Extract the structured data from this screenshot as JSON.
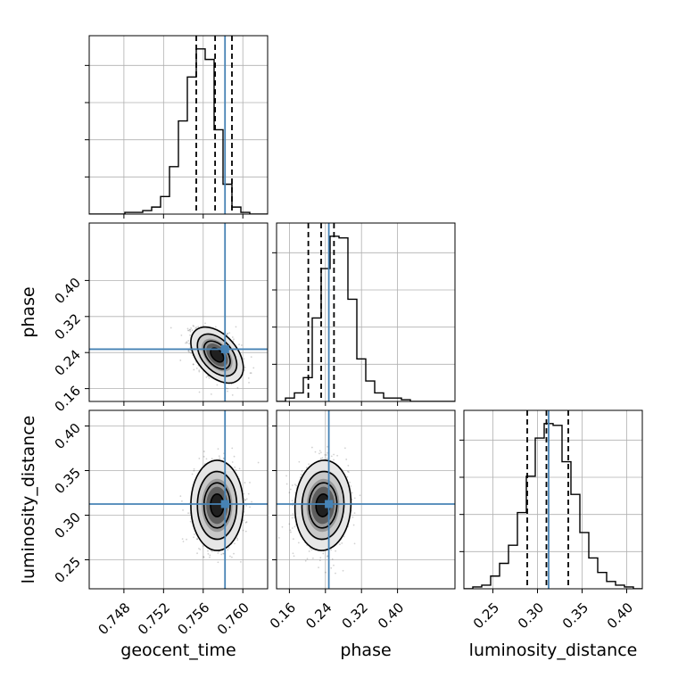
{
  "chart_data": {
    "type": "corner",
    "parameters": [
      "geocent_time",
      "phase",
      "luminosity_distance"
    ],
    "axis_labels": {
      "geocent_time": "geocent_time",
      "phase": "phase",
      "luminosity_distance": "luminosity_distance"
    },
    "ranges": {
      "geocent_time": [
        0.7445,
        0.7625
      ],
      "phase": [
        0.1315,
        0.5275
      ],
      "luminosity_distance": [
        0.2175,
        0.4175
      ]
    },
    "ticks": {
      "geocent_time": [
        {
          "value": 0.748,
          "label": "0.748"
        },
        {
          "value": 0.752,
          "label": "0.752"
        },
        {
          "value": 0.756,
          "label": "0.756"
        },
        {
          "value": 0.76,
          "label": "0.760"
        }
      ],
      "phase": [
        {
          "value": 0.16,
          "label": "0.16"
        },
        {
          "value": 0.24,
          "label": "0.24"
        },
        {
          "value": 0.32,
          "label": "0.32"
        },
        {
          "value": 0.4,
          "label": "0.40"
        }
      ],
      "luminosity_distance": [
        {
          "value": 0.25,
          "label": "0.25"
        },
        {
          "value": 0.3,
          "label": "0.30"
        },
        {
          "value": 0.35,
          "label": "0.35"
        },
        {
          "value": 0.4,
          "label": "0.40"
        }
      ]
    },
    "truths": {
      "geocent_time": 0.7582,
      "phase": 0.2475,
      "luminosity_distance": 0.3125
    },
    "quantiles": {
      "geocent_time": [
        0.7553,
        0.7572,
        0.7589
      ],
      "phase": [
        0.202,
        0.2305,
        0.259
      ],
      "luminosity_distance": [
        0.2885,
        0.31,
        0.3345
      ]
    },
    "histograms": {
      "geocent_time": {
        "bin_width": 0.0009,
        "bin_edges_start": 0.7445,
        "counts": [
          0,
          0,
          0,
          0,
          1,
          1,
          2,
          4,
          10,
          27,
          53,
          78,
          94,
          88,
          48,
          17,
          4,
          1,
          0,
          0
        ]
      },
      "phase": {
        "bin_width": 0.0198,
        "bin_edges_start": 0.1315,
        "counts": [
          0,
          2,
          5,
          14,
          49,
          78,
          97,
          96,
          60,
          25,
          12,
          5,
          2,
          2,
          1,
          0,
          0,
          0,
          0,
          0
        ]
      },
      "luminosity_distance": {
        "bin_width": 0.01,
        "bin_edges_start": 0.2175,
        "counts": [
          0,
          1,
          2,
          7,
          14,
          24,
          42,
          62,
          83,
          91,
          90,
          70,
          52,
          31,
          17,
          9,
          4,
          2,
          1,
          0
        ]
      }
    },
    "posterior_2d": {
      "geocent_time__phase": {
        "mean": [
          0.7574,
          0.2345
        ],
        "sigma": [
          0.00115,
          0.027
        ],
        "correlation": -0.45
      },
      "geocent_time__luminosity_distance": {
        "mean": [
          0.7574,
          0.311
        ],
        "sigma": [
          0.00115,
          0.022
        ],
        "correlation": 0.0
      },
      "phase__luminosity_distance": {
        "mean": [
          0.2345,
          0.311
        ],
        "sigma": [
          0.027,
          0.022
        ],
        "correlation": 0.05
      }
    },
    "contour_levels_sigma": [
      0.5,
      1.0,
      1.5,
      2.0
    ],
    "grid": true,
    "colors": {
      "truth": "#4682b4",
      "histogram": "#000000",
      "quantile": "#000000",
      "grid": "#b0b0b0",
      "samples": "#000000"
    }
  }
}
